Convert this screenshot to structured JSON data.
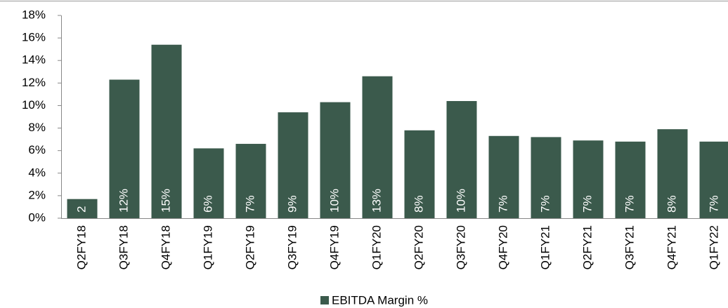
{
  "chart_data": {
    "type": "bar",
    "categories": [
      "Q2FY18",
      "Q3FY18",
      "Q4FY18",
      "Q1FY19",
      "Q2FY19",
      "Q3FY19",
      "Q4FY19",
      "Q1FY20",
      "Q2FY20",
      "Q3FY20",
      "Q4FY20",
      "Q1FY21",
      "Q2FY21",
      "Q3FY21",
      "Q4FY21",
      "Q1FY22"
    ],
    "series": [
      {
        "name": "EBITDA Margin %",
        "color": "#3b5a4c",
        "values": [
          1.7,
          12.3,
          15.4,
          6.2,
          6.6,
          9.4,
          10.3,
          12.6,
          7.8,
          10.4,
          7.3,
          7.2,
          6.9,
          6.8,
          7.9,
          6.8
        ],
        "value_labels": [
          "2",
          "12%",
          "15%",
          "6%",
          "7%",
          "9%",
          "10%",
          "13%",
          "8%",
          "10%",
          "7%",
          "7%",
          "7%",
          "7%",
          "8%",
          "7%"
        ]
      }
    ],
    "ylim": [
      0,
      18
    ],
    "yticks": [
      {
        "value": 0,
        "label": "0%"
      },
      {
        "value": 2,
        "label": "2%"
      },
      {
        "value": 4,
        "label": "4%"
      },
      {
        "value": 6,
        "label": "6%"
      },
      {
        "value": 8,
        "label": "8%"
      },
      {
        "value": 10,
        "label": "10%"
      },
      {
        "value": 12,
        "label": "12%"
      },
      {
        "value": 14,
        "label": "14%"
      },
      {
        "value": 16,
        "label": "16%"
      },
      {
        "value": 18,
        "label": "18%"
      }
    ],
    "grid": false,
    "legend": "bottom"
  }
}
